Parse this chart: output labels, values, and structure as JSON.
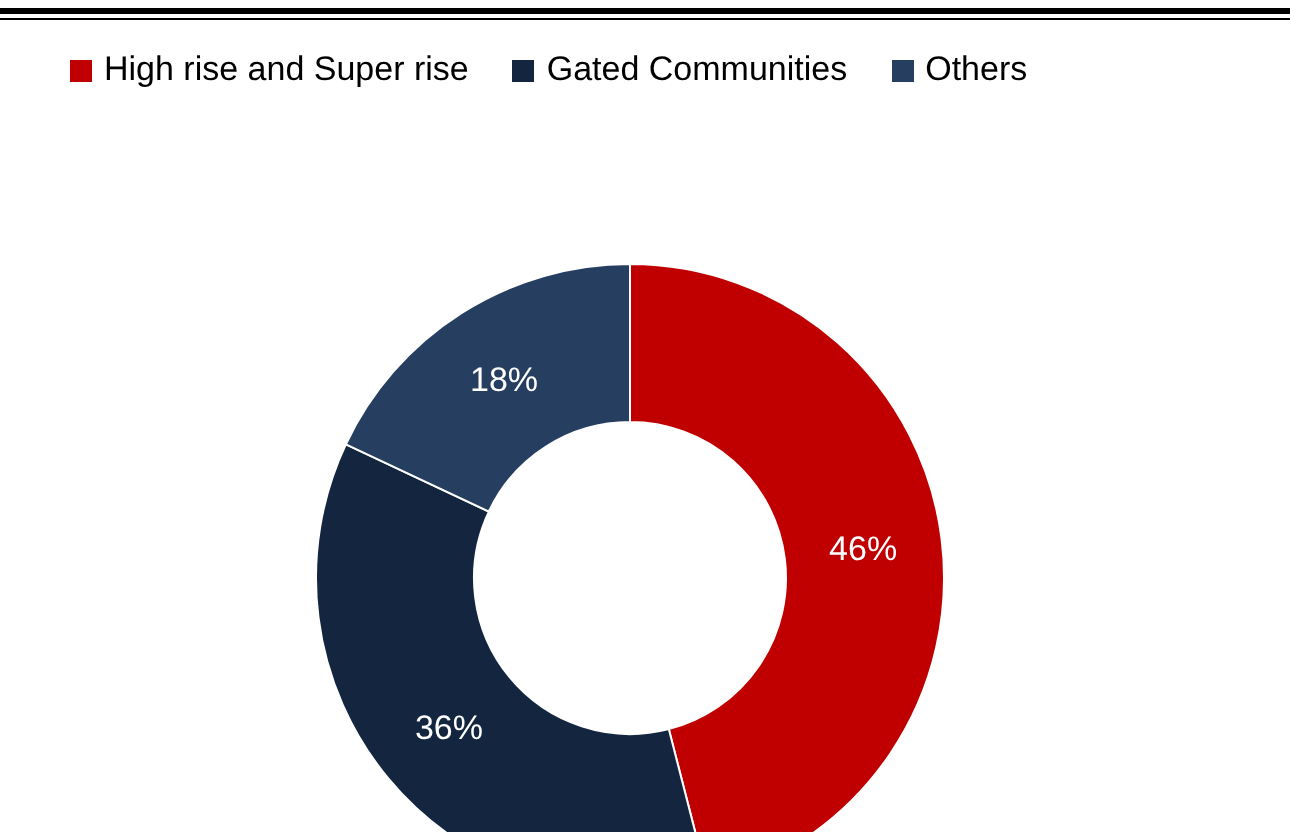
{
  "chart_data": {
    "type": "donut",
    "categories": [
      "High rise and Super rise",
      "Gated Communities",
      "Others"
    ],
    "values": [
      46,
      36,
      18
    ],
    "colors": [
      "#c00000",
      "#13253f",
      "#263f61"
    ],
    "value_labels": [
      "46%",
      "36%",
      "18%"
    ],
    "legend": "top left"
  }
}
